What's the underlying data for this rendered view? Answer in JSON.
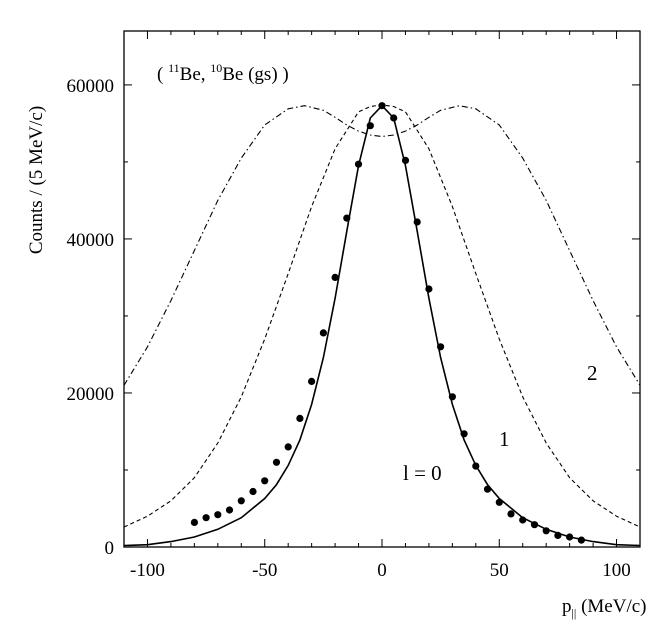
{
  "chart_data": {
    "type": "line",
    "title": "( 11Be, 10Be (gs) )",
    "title_parts": {
      "open": "( ",
      "sup1": "11",
      "el1": "Be, ",
      "sup2": "10",
      "el2": "Be (gs) )"
    },
    "xlabel": "p|| (MeV/c)",
    "xlabel_parts": {
      "p": "p",
      "sub": "||",
      "unit": " (MeV/c)"
    },
    "ylabel": "Counts / (5 MeV/c)",
    "xlim": [
      -110,
      110
    ],
    "ylim": [
      0,
      67000
    ],
    "xticks": [
      -100,
      -50,
      0,
      50,
      100
    ],
    "yticks": [
      0,
      20000,
      40000,
      60000
    ],
    "xtick_labels": [
      "-100",
      "-50",
      "0",
      "50",
      "100"
    ],
    "ytick_labels": [
      "0",
      "20000",
      "40000",
      "60000"
    ],
    "curve_labels": {
      "l0": "l = 0",
      "l1": "1",
      "l2": "2"
    },
    "series": [
      {
        "name": "l = 0",
        "style": "solid",
        "x": [
          -110,
          -100,
          -90,
          -80,
          -70,
          -60,
          -50,
          -45,
          -40,
          -35,
          -30,
          -25,
          -20,
          -15,
          -10,
          -5,
          0,
          5,
          10,
          15,
          20,
          25,
          30,
          35,
          40,
          45,
          50,
          60,
          70,
          80,
          90,
          100,
          110
        ],
        "y": [
          200,
          300,
          700,
          1300,
          2300,
          3800,
          6300,
          8100,
          10600,
          13900,
          18500,
          24600,
          32300,
          41000,
          49500,
          55700,
          57300,
          55700,
          49500,
          41000,
          32300,
          24600,
          18500,
          13900,
          10600,
          8100,
          6300,
          3800,
          2300,
          1300,
          700,
          300,
          200
        ]
      },
      {
        "name": "1",
        "style": "dashed",
        "x": [
          -110,
          -100,
          -90,
          -80,
          -70,
          -60,
          -50,
          -40,
          -30,
          -20,
          -10,
          -5,
          0,
          5,
          10,
          20,
          30,
          40,
          50,
          60,
          70,
          80,
          90,
          100,
          110
        ],
        "y": [
          2600,
          4000,
          6000,
          9000,
          13500,
          19500,
          27000,
          35500,
          44200,
          51700,
          56500,
          57200,
          57400,
          57200,
          56500,
          51700,
          44200,
          35500,
          27000,
          19500,
          13500,
          9000,
          6000,
          4000,
          2600
        ]
      },
      {
        "name": "2",
        "style": "dash-dot",
        "x": [
          -110,
          -100,
          -90,
          -80,
          -70,
          -60,
          -50,
          -40,
          -33,
          -25,
          -20,
          -15,
          -10,
          -5,
          0,
          5,
          10,
          15,
          20,
          25,
          33,
          40,
          50,
          60,
          70,
          80,
          90,
          100,
          110
        ],
        "y": [
          21000,
          26000,
          32000,
          38500,
          45000,
          50500,
          54800,
          56900,
          57300,
          56700,
          55800,
          54800,
          54000,
          53500,
          53300,
          53500,
          54000,
          54800,
          55800,
          56700,
          57300,
          56900,
          54800,
          50500,
          45000,
          38500,
          32000,
          26000,
          21000
        ]
      }
    ],
    "data_points": {
      "name": "data",
      "x": [
        -80,
        -75,
        -70,
        -65,
        -60,
        -55,
        -50,
        -45,
        -40,
        -35,
        -30,
        -25,
        -20,
        -15,
        -10,
        -5,
        0,
        5,
        10,
        15,
        20,
        25,
        30,
        35,
        40,
        45,
        50,
        55,
        60,
        65,
        70,
        75,
        80,
        85
      ],
      "y": [
        3200,
        3800,
        4200,
        4800,
        6000,
        7200,
        8600,
        11000,
        13000,
        16700,
        21500,
        27800,
        35000,
        42700,
        49700,
        54700,
        57300,
        55700,
        50200,
        42200,
        33500,
        26000,
        19500,
        14700,
        10500,
        7500,
        5800,
        4300,
        3500,
        2900,
        2100,
        1500,
        1300,
        900
      ]
    }
  }
}
